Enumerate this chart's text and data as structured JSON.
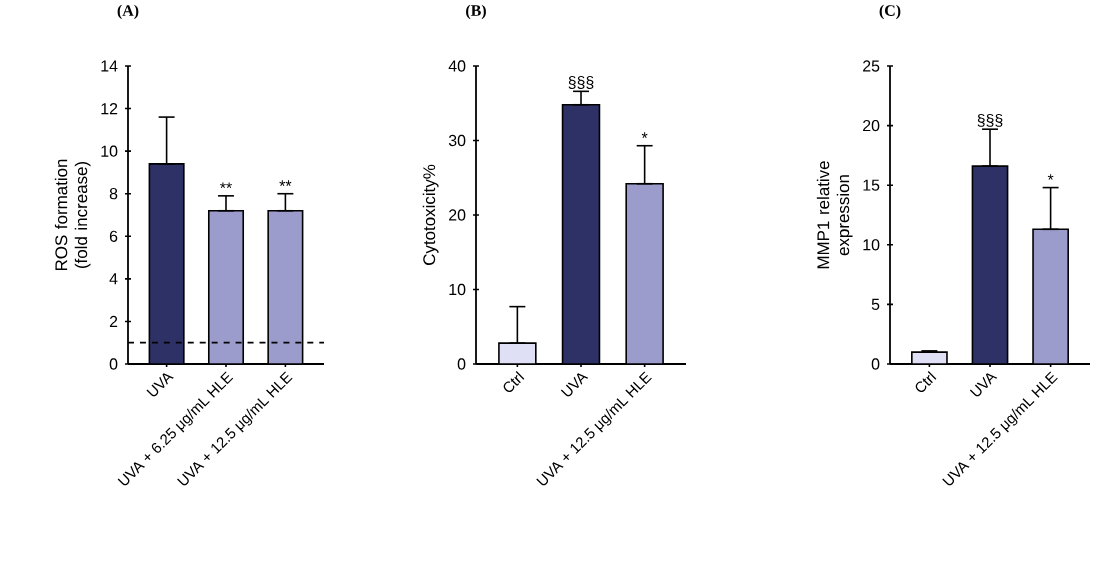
{
  "chart_data": [
    {
      "type": "bar",
      "title": "(A)",
      "ylabel": "ROS formation (fold increase)",
      "categories": [
        "UVA",
        "UVA + 6.25 μg/mL HLE",
        "UVA + 12.5 μg/mL HLE"
      ],
      "values": [
        9.4,
        7.2,
        7.2
      ],
      "colors": [
        "#2e3166",
        "#9b9ccc",
        "#9b9ccc"
      ],
      "errors": [
        [
          9.4,
          11.6
        ],
        [
          7.2,
          7.9
        ],
        [
          7.2,
          8.0
        ]
      ],
      "ylim": [
        0,
        14
      ],
      "yticks": [
        0,
        2,
        4,
        6,
        8,
        10,
        12,
        14
      ],
      "ref_lines": [
        {
          "axis": "y",
          "value": 1,
          "line_style": "dashed",
          "color": "#000000"
        }
      ],
      "annotations": [
        {
          "text": "**",
          "x": "UVA + 6.25 μg/mL HLE",
          "y": 7.9
        },
        {
          "text": "**",
          "x": "UVA + 12.5 μg/mL HLE",
          "y": 8.0
        }
      ]
    },
    {
      "type": "bar",
      "title": "(B)",
      "ylabel": "Cytotoxicity%",
      "categories": [
        "Ctrl",
        "UVA",
        "UVA + 12.5 μg/mL HLE"
      ],
      "values": [
        2.8,
        34.8,
        24.2
      ],
      "colors": [
        "#dfe0f5",
        "#2e3166",
        "#9b9ccc"
      ],
      "errors": [
        [
          2.8,
          7.7
        ],
        [
          34.8,
          36.6
        ],
        [
          24.2,
          29.3
        ]
      ],
      "ylim": [
        0,
        40
      ],
      "yticks": [
        0,
        10,
        20,
        30,
        40
      ],
      "annotations": [
        {
          "text": "§§§",
          "x": "UVA",
          "y": 36.6
        },
        {
          "text": "*",
          "x": "UVA + 12.5 μg/mL HLE",
          "y": 29.3
        }
      ]
    },
    {
      "type": "bar",
      "title": "(C)",
      "ylabel": "MMP1 relative expression",
      "categories": [
        "Ctrl",
        "UVA",
        "UVA + 12.5 μg/mL HLE"
      ],
      "values": [
        1.0,
        16.6,
        11.3
      ],
      "colors": [
        "#dfe0f5",
        "#2e3166",
        "#9b9ccc"
      ],
      "errors": [
        [
          1.0,
          1.1
        ],
        [
          16.6,
          19.7
        ],
        [
          11.3,
          14.8
        ]
      ],
      "ylim": [
        0,
        25
      ],
      "yticks": [
        0,
        5,
        10,
        15,
        20,
        25
      ],
      "annotations": [
        {
          "text": "§§§",
          "x": "UVA",
          "y": 19.7
        },
        {
          "text": "*",
          "x": "UVA + 12.5 μg/mL HLE",
          "y": 14.8
        }
      ]
    }
  ]
}
